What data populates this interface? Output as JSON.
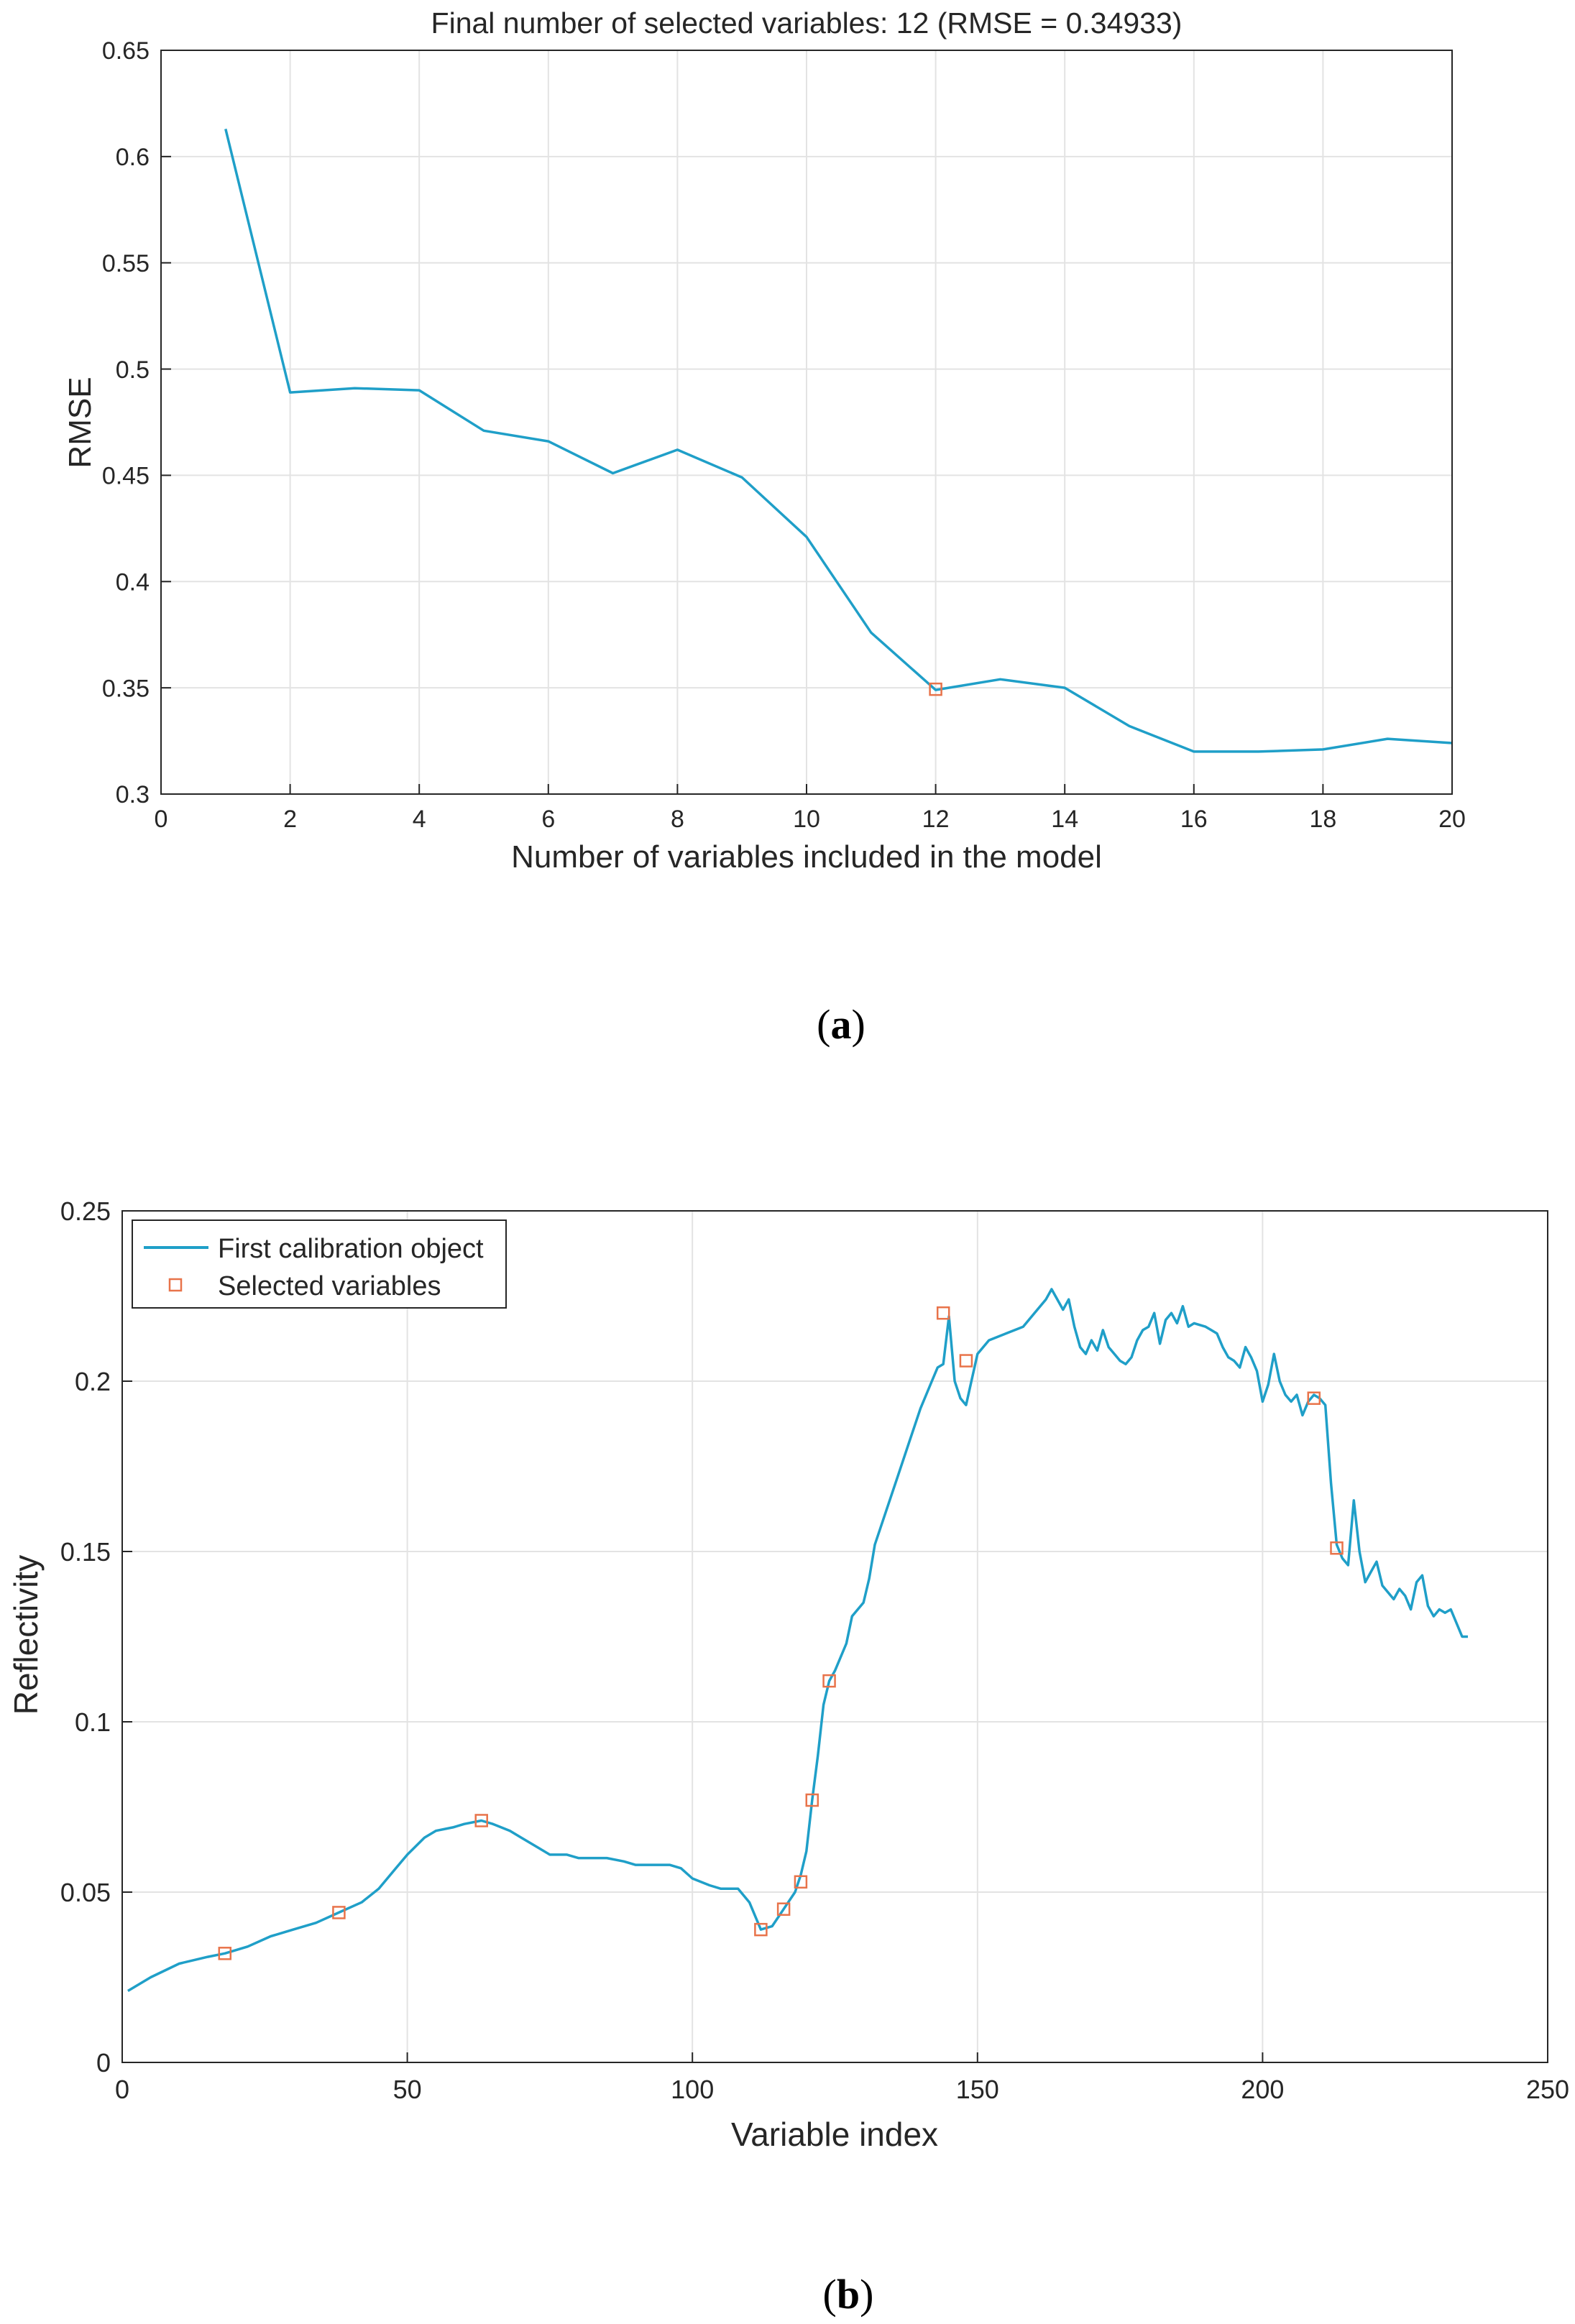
{
  "chart_data": [
    {
      "type": "line",
      "panel_label": "a",
      "title": "Final number of selected variables: 12  (RMSE = 0.34933)",
      "xlabel": "Number of variables included in the model",
      "ylabel": "RMSE",
      "xlim": [
        0,
        20
      ],
      "ylim": [
        0.3,
        0.65
      ],
      "xticks": [
        "0",
        "2",
        "4",
        "6",
        "8",
        "10",
        "12",
        "14",
        "16",
        "18",
        "20"
      ],
      "yticks": [
        "0.3",
        "0.35",
        "0.4",
        "0.45",
        "0.5",
        "0.55",
        "0.6",
        "0.65"
      ],
      "grid": true,
      "series": [
        {
          "name": "RMSE",
          "color": "#1f9fc8",
          "x": [
            1,
            2,
            3,
            4,
            5,
            6,
            7,
            8,
            9,
            10,
            11,
            12,
            13,
            14,
            15,
            16,
            17,
            18,
            19,
            20
          ],
          "values": [
            0.613,
            0.489,
            0.491,
            0.49,
            0.471,
            0.466,
            0.451,
            0.462,
            0.449,
            0.421,
            0.376,
            0.349,
            0.354,
            0.35,
            0.332,
            0.32,
            0.32,
            0.321,
            0.326,
            0.324
          ]
        }
      ],
      "marker": {
        "x": 12,
        "y": 0.34933,
        "color": "#e8734a"
      }
    },
    {
      "type": "line",
      "panel_label": "b",
      "title": "",
      "xlabel": "Variable index",
      "ylabel": "Reflectivity",
      "xlim": [
        0,
        250
      ],
      "ylim": [
        0,
        0.25
      ],
      "xticks": [
        "0",
        "50",
        "100",
        "150",
        "200",
        "250"
      ],
      "yticks": [
        "0",
        "0.05",
        "0.1",
        "0.15",
        "0.2",
        "0.25"
      ],
      "grid": true,
      "legend": {
        "position": "top-left",
        "entries": [
          "First calibration object",
          "Selected variables"
        ]
      },
      "series": [
        {
          "name": "First calibration object",
          "color": "#1f9fc8",
          "x": [
            1,
            5,
            10,
            15,
            18,
            22,
            26,
            30,
            34,
            38,
            42,
            45,
            48,
            50,
            53,
            55,
            58,
            60,
            63,
            65,
            68,
            70,
            73,
            75,
            78,
            80,
            83,
            85,
            88,
            90,
            93,
            96,
            98,
            100,
            103,
            105,
            108,
            110,
            112,
            114,
            116,
            118,
            119,
            120,
            121,
            122,
            123,
            124,
            125,
            127,
            128,
            130,
            131,
            132,
            134,
            136,
            138,
            140,
            141,
            142,
            143,
            144,
            145,
            146,
            147,
            148,
            150,
            152,
            155,
            158,
            160,
            162,
            163,
            165,
            166,
            167,
            168,
            169,
            170,
            171,
            172,
            173,
            174,
            175,
            176,
            177,
            178,
            179,
            180,
            181,
            182,
            183,
            184,
            185,
            186,
            187,
            188,
            190,
            191,
            192,
            193,
            194,
            195,
            196,
            197,
            198,
            199,
            200,
            201,
            202,
            203,
            204,
            205,
            206,
            207,
            208,
            209,
            210,
            211,
            212,
            213,
            214,
            215,
            216,
            217,
            218,
            219,
            220,
            221,
            222,
            223,
            224,
            225,
            226,
            227,
            228,
            229,
            230,
            231,
            232,
            233,
            234,
            235,
            236
          ],
          "values": [
            0.021,
            0.025,
            0.029,
            0.031,
            0.032,
            0.034,
            0.037,
            0.039,
            0.041,
            0.044,
            0.047,
            0.051,
            0.057,
            0.061,
            0.066,
            0.068,
            0.069,
            0.07,
            0.071,
            0.07,
            0.068,
            0.066,
            0.063,
            0.061,
            0.061,
            0.06,
            0.06,
            0.06,
            0.059,
            0.058,
            0.058,
            0.058,
            0.057,
            0.054,
            0.052,
            0.051,
            0.051,
            0.047,
            0.039,
            0.04,
            0.045,
            0.05,
            0.055,
            0.062,
            0.077,
            0.09,
            0.105,
            0.112,
            0.115,
            0.123,
            0.131,
            0.135,
            0.142,
            0.152,
            0.162,
            0.172,
            0.182,
            0.192,
            0.196,
            0.2,
            0.204,
            0.205,
            0.219,
            0.2,
            0.195,
            0.193,
            0.208,
            0.212,
            0.214,
            0.216,
            0.22,
            0.224,
            0.227,
            0.221,
            0.224,
            0.216,
            0.21,
            0.208,
            0.212,
            0.209,
            0.215,
            0.21,
            0.208,
            0.206,
            0.205,
            0.207,
            0.212,
            0.215,
            0.216,
            0.22,
            0.211,
            0.218,
            0.22,
            0.217,
            0.222,
            0.216,
            0.217,
            0.216,
            0.215,
            0.214,
            0.21,
            0.207,
            0.206,
            0.204,
            0.21,
            0.207,
            0.203,
            0.194,
            0.199,
            0.208,
            0.2,
            0.196,
            0.194,
            0.196,
            0.19,
            0.194,
            0.196,
            0.195,
            0.193,
            0.17,
            0.152,
            0.148,
            0.146,
            0.165,
            0.15,
            0.141,
            0.144,
            0.147,
            0.14,
            0.138,
            0.136,
            0.139,
            0.137,
            0.133,
            0.141,
            0.143,
            0.134,
            0.131,
            0.133,
            0.132,
            0.133,
            0.129,
            0.125,
            0.125
          ]
        }
      ],
      "markers": {
        "name": "Selected variables",
        "color": "#e8734a",
        "x": [
          18,
          38,
          63,
          112,
          116,
          119,
          121,
          124,
          144,
          148,
          209,
          213
        ],
        "values": [
          0.032,
          0.044,
          0.071,
          0.039,
          0.045,
          0.053,
          0.077,
          0.112,
          0.22,
          0.206,
          0.195,
          0.151
        ]
      }
    }
  ]
}
